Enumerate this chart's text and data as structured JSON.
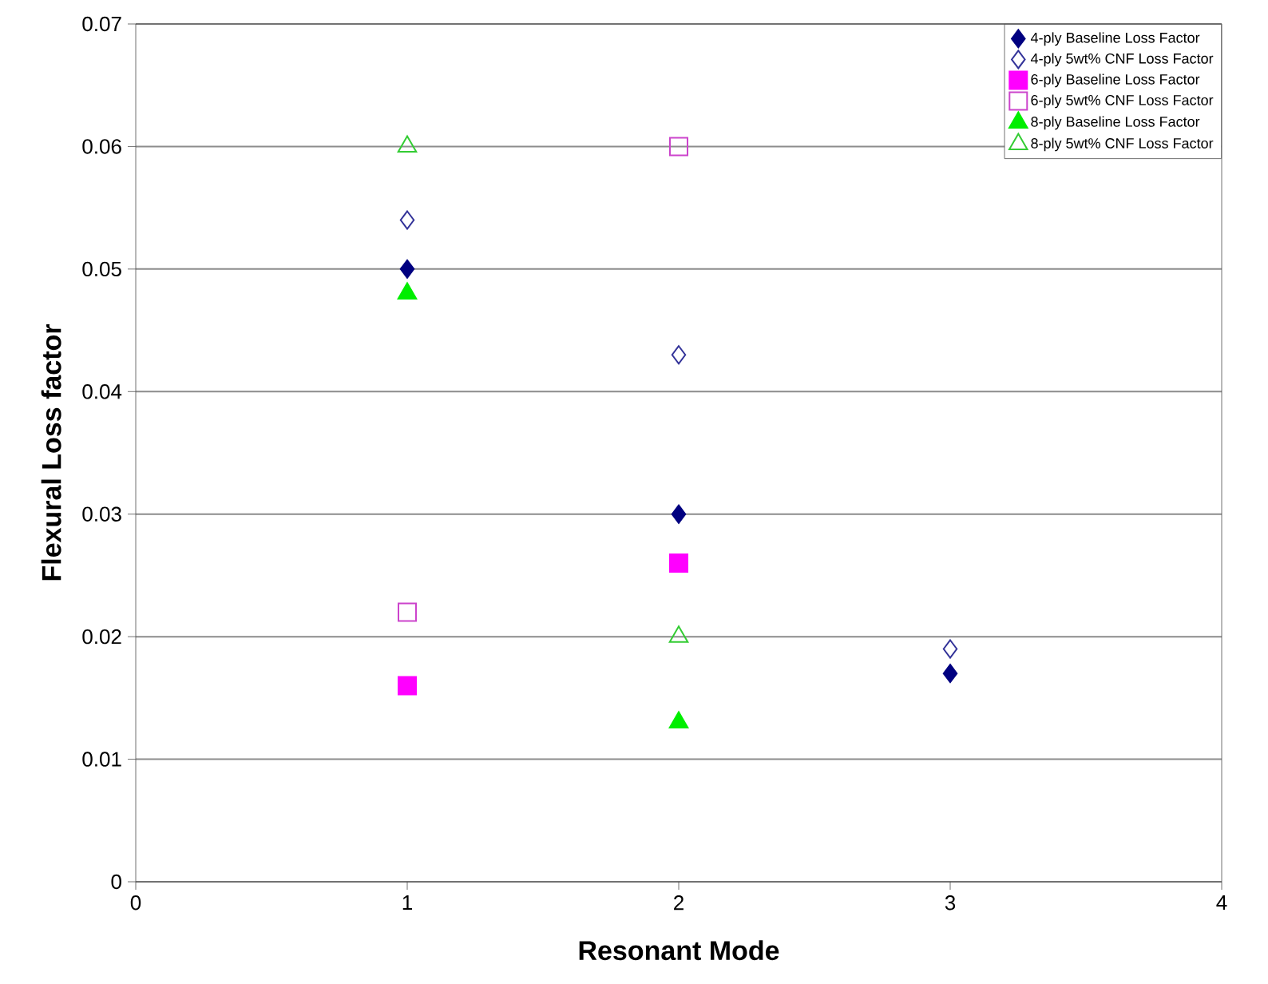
{
  "chart_data": {
    "type": "scatter",
    "xlabel": "Resonant Mode",
    "ylabel": "Flexural Loss factor",
    "xlim": [
      0,
      4
    ],
    "xticks": [
      0,
      1,
      2,
      3,
      4
    ],
    "ylim": [
      0,
      0.07
    ],
    "yticks": [
      0,
      0.01,
      0.02,
      0.03,
      0.04,
      0.05,
      0.06,
      0.07
    ],
    "grid": "y",
    "legend": "top right",
    "series": [
      {
        "name": "4-ply Baseline Loss Factor",
        "color": "#000080",
        "marker": "diamond",
        "x": [
          1,
          2,
          3
        ],
        "values": [
          0.05,
          0.03,
          0.017
        ]
      },
      {
        "name": "4-ply 5wt% CNF  Loss Factor",
        "color": "#333399",
        "marker": "diamond",
        "x": [
          1,
          2,
          3
        ],
        "values": [
          0.054,
          0.043,
          0.019
        ]
      },
      {
        "name": "6-ply Baseline Loss Factor",
        "color": "#ff00ff",
        "marker": "square",
        "x": [
          1,
          2
        ],
        "values": [
          0.016,
          0.026
        ]
      },
      {
        "name": "6-ply 5wt% CNF Loss Factor",
        "color": "#cc44cc",
        "marker": "square",
        "x": [
          1,
          2
        ],
        "values": [
          0.022,
          0.06
        ]
      },
      {
        "name": "8-ply Baseline Loss Factor",
        "color": "#00ee00",
        "marker": "triangle",
        "x": [
          1,
          2
        ],
        "values": [
          0.048,
          0.013
        ]
      },
      {
        "name": "8-ply 5wt% CNF Loss Factor",
        "color": "#33cc33",
        "marker": "triangle",
        "x": [
          1,
          2
        ],
        "values": [
          0.06,
          0.02
        ]
      }
    ]
  }
}
